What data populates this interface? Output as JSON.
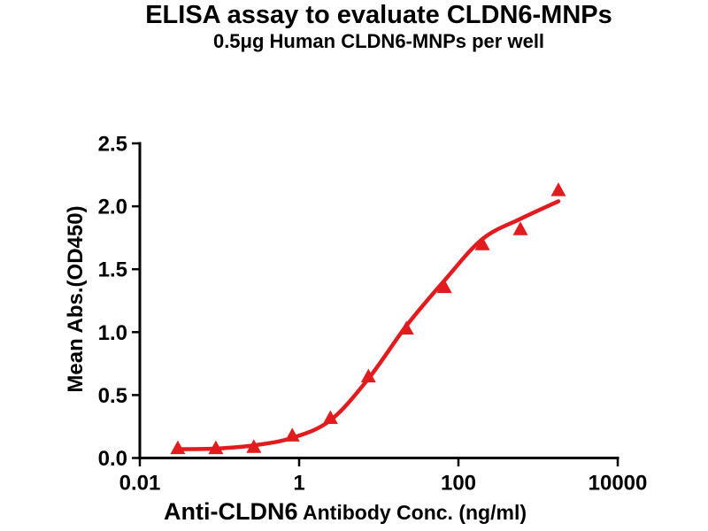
{
  "page": {
    "background": "#ffffff"
  },
  "chart_data": {
    "type": "scatter",
    "title": "ELISA assay to evaluate CLDN6-MNPs",
    "subtitle": "0.5μg Human CLDN6-MNPs per well",
    "xlabel_emphasis": "Anti-CLDN6",
    "xlabel_rest": " Antibody Conc. (ng/ml)",
    "ylabel": "Mean Abs.(OD450)",
    "x_scale": "log",
    "xlim": [
      0.01,
      10000
    ],
    "ylim": [
      0.0,
      2.5
    ],
    "grid": false,
    "legend_position": "none",
    "x_ticks": [
      0.01,
      1,
      100,
      10000
    ],
    "x_tick_labels": [
      "0.01",
      "1",
      "100",
      "10000"
    ],
    "y_ticks": [
      0.0,
      0.5,
      1.0,
      1.5,
      2.0,
      2.5
    ],
    "y_tick_labels": [
      "0.0",
      "0.5",
      "1.0",
      "1.5",
      "2.0",
      "2.5"
    ],
    "marker_shape": "triangle-up",
    "accent_color": "#e21b1e",
    "axis_color": "#000000",
    "series": [
      {
        "x": [
          0.03,
          0.09,
          0.27,
          0.82,
          2.47,
          7.41,
          22.2,
          66.7,
          200,
          600,
          1800
        ],
        "y": [
          0.08,
          0.08,
          0.09,
          0.18,
          0.32,
          0.65,
          1.03,
          1.36,
          1.7,
          1.82,
          2.13
        ]
      }
    ],
    "fit_curve": {
      "x": [
        0.03,
        0.09,
        0.27,
        0.82,
        2.47,
        7.41,
        22.2,
        66.7,
        200,
        600,
        1800
      ],
      "y": [
        0.07,
        0.075,
        0.1,
        0.16,
        0.3,
        0.63,
        1.05,
        1.41,
        1.74,
        1.9,
        2.04
      ]
    }
  }
}
